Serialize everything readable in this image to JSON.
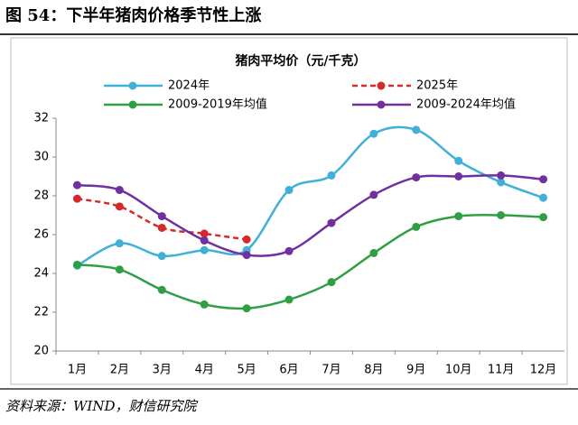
{
  "figure_title": "图 54：下半年猪肉价格季节性上涨",
  "source": "资料来源：WIND，财信研究院",
  "chart_data": {
    "type": "line",
    "title": "猪肉平均价（元/千克）",
    "categories": [
      "1月",
      "2月",
      "3月",
      "4月",
      "5月",
      "6月",
      "7月",
      "8月",
      "9月",
      "10月",
      "11月",
      "12月"
    ],
    "series": [
      {
        "name": "2024年",
        "color": "#41b0d8",
        "dash": false,
        "values": [
          24.4,
          25.55,
          24.9,
          25.2,
          25.2,
          28.3,
          29.05,
          31.2,
          31.4,
          29.8,
          28.7,
          27.9
        ]
      },
      {
        "name": "2025年",
        "color": "#d42a2a",
        "dash": true,
        "values": [
          27.85,
          27.45,
          26.35,
          26.05,
          25.75,
          null,
          null,
          null,
          null,
          null,
          null,
          null
        ]
      },
      {
        "name": "2009-2019年均值",
        "color": "#2ea043",
        "dash": false,
        "values": [
          24.45,
          24.2,
          23.15,
          22.4,
          22.2,
          22.65,
          23.55,
          25.05,
          26.4,
          26.95,
          27.0,
          26.9
        ]
      },
      {
        "name": "2009-2024年均值",
        "color": "#7030a0",
        "dash": false,
        "values": [
          28.55,
          28.3,
          26.95,
          25.7,
          24.95,
          25.15,
          26.6,
          28.05,
          28.95,
          29.0,
          29.05,
          28.85
        ]
      }
    ],
    "ylim": [
      20,
      32
    ],
    "yticks": [
      20,
      22,
      24,
      26,
      28,
      30,
      32
    ],
    "grid": false
  }
}
